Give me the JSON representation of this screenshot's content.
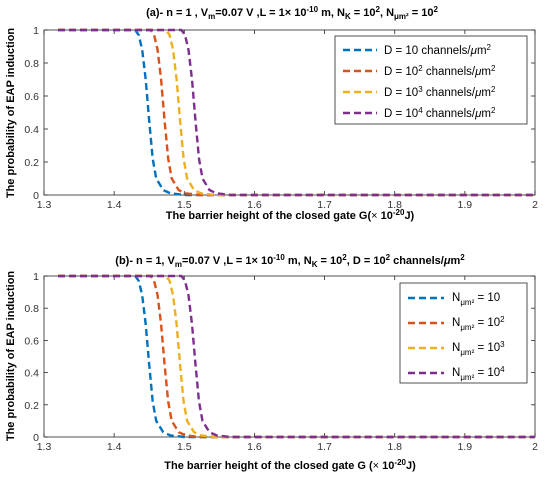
{
  "ylabel": "The probability of EAP induction",
  "chart_data": [
    {
      "type": "line",
      "title": "(a)- n = 1 , V_m=0.07 V ,L = 1× 10^-10 m, N_K = 10^2, N_μm² = 10^2",
      "xlabel": "The barrier height of the closed gate G(× 10^-20 J)",
      "ylabel": "The probability of EAP induction",
      "xlim": [
        1.3,
        2
      ],
      "ylim": [
        0,
        1
      ],
      "xticks": [
        "1.3",
        "1.4",
        "1.5",
        "1.6",
        "1.7",
        "1.8",
        "1.9",
        "2"
      ],
      "yticks": [
        "0",
        "0.2",
        "0.4",
        "0.6",
        "0.8",
        "1"
      ],
      "legend_position": "top-right",
      "series": [
        {
          "name": "D = 10 channels/μm²",
          "color": "#0072BD",
          "x": [
            1.32,
            1.43,
            1.435,
            1.44,
            1.445,
            1.45,
            1.455,
            1.46,
            1.47,
            1.48,
            1.5,
            2.0
          ],
          "y": [
            1,
            1,
            0.97,
            0.88,
            0.7,
            0.45,
            0.22,
            0.1,
            0.03,
            0.01,
            0,
            0
          ]
        },
        {
          "name": "D = 10² channels/μm²",
          "color": "#D95319",
          "x": [
            1.32,
            1.452,
            1.457,
            1.462,
            1.467,
            1.472,
            1.477,
            1.482,
            1.492,
            1.502,
            1.522,
            2.0
          ],
          "y": [
            1,
            1,
            0.97,
            0.88,
            0.7,
            0.45,
            0.22,
            0.1,
            0.03,
            0.01,
            0,
            0
          ]
        },
        {
          "name": "D = 10³ channels/μm²",
          "color": "#EDB120",
          "x": [
            1.32,
            1.474,
            1.479,
            1.484,
            1.489,
            1.494,
            1.499,
            1.504,
            1.514,
            1.524,
            1.544,
            2.0
          ],
          "y": [
            1,
            1,
            0.97,
            0.88,
            0.7,
            0.45,
            0.22,
            0.1,
            0.03,
            0.01,
            0,
            0
          ]
        },
        {
          "name": "D = 10⁴ channels/μm²",
          "color": "#7E2F8E",
          "x": [
            1.32,
            1.496,
            1.501,
            1.506,
            1.511,
            1.516,
            1.521,
            1.526,
            1.536,
            1.546,
            1.566,
            2.0
          ],
          "y": [
            1,
            1,
            0.97,
            0.88,
            0.7,
            0.45,
            0.22,
            0.1,
            0.03,
            0.01,
            0,
            0
          ]
        }
      ]
    },
    {
      "type": "line",
      "title": "(b)- n = 1, V_m=0.07 V ,L = 1× 10^-10 m, N_K = 10^2, D = 10^2 channels/μm²",
      "xlabel": "The barrier height of the closed gate G (× 10^-20 J)",
      "ylabel": "The probability of EAP induction",
      "xlim": [
        1.3,
        2
      ],
      "ylim": [
        0,
        1
      ],
      "xticks": [
        "1.3",
        "1.4",
        "1.5",
        "1.6",
        "1.7",
        "1.8",
        "1.9",
        "2"
      ],
      "yticks": [
        "0",
        "0.2",
        "0.4",
        "0.6",
        "0.8",
        "1"
      ],
      "legend_position": "top-right",
      "series": [
        {
          "name": "N_μm² = 10",
          "color": "#0072BD",
          "x": [
            1.32,
            1.43,
            1.435,
            1.44,
            1.445,
            1.45,
            1.455,
            1.46,
            1.47,
            1.48,
            1.5,
            2.0
          ],
          "y": [
            1,
            1,
            0.97,
            0.88,
            0.7,
            0.45,
            0.22,
            0.1,
            0.03,
            0.01,
            0,
            0
          ]
        },
        {
          "name": "N_μm² = 10²",
          "color": "#D95319",
          "x": [
            1.32,
            1.452,
            1.457,
            1.462,
            1.467,
            1.472,
            1.477,
            1.482,
            1.492,
            1.502,
            1.522,
            2.0
          ],
          "y": [
            1,
            1,
            0.97,
            0.88,
            0.7,
            0.45,
            0.22,
            0.1,
            0.03,
            0.01,
            0,
            0
          ]
        },
        {
          "name": "N_μm² = 10³",
          "color": "#EDB120",
          "x": [
            1.32,
            1.474,
            1.479,
            1.484,
            1.489,
            1.494,
            1.499,
            1.504,
            1.514,
            1.524,
            1.544,
            2.0
          ],
          "y": [
            1,
            1,
            0.97,
            0.88,
            0.7,
            0.45,
            0.22,
            0.1,
            0.03,
            0.01,
            0,
            0
          ]
        },
        {
          "name": "N_μm² = 10⁴",
          "color": "#7E2F8E",
          "x": [
            1.32,
            1.496,
            1.501,
            1.506,
            1.511,
            1.516,
            1.521,
            1.526,
            1.536,
            1.546,
            1.566,
            2.0
          ],
          "y": [
            1,
            1,
            0.97,
            0.88,
            0.7,
            0.45,
            0.22,
            0.1,
            0.03,
            0.01,
            0,
            0
          ]
        }
      ]
    }
  ]
}
